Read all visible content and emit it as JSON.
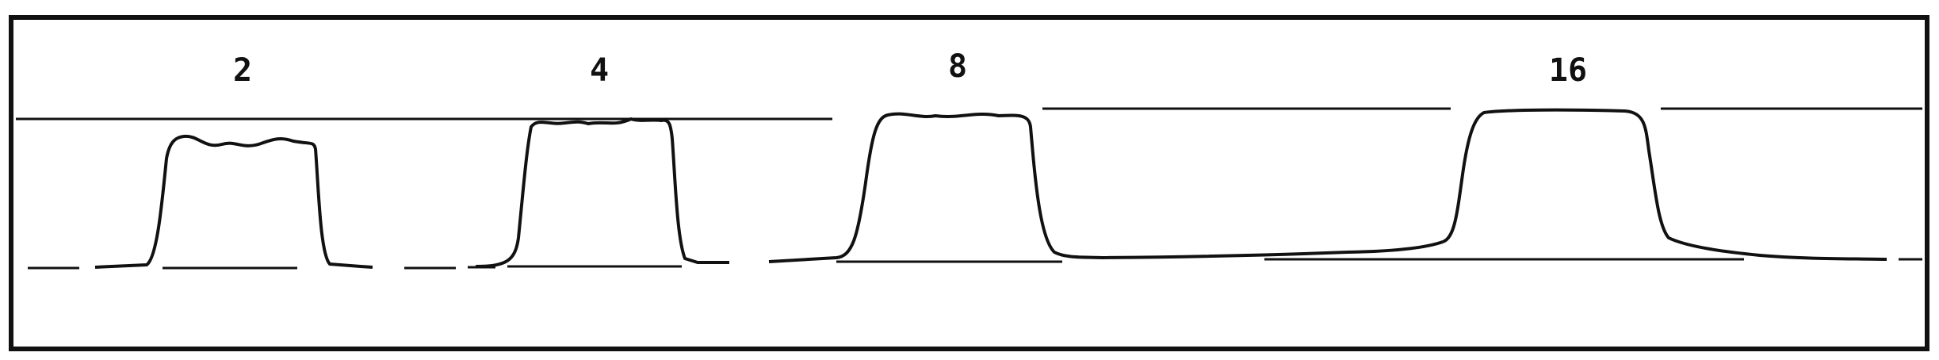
{
  "chart_data": {
    "type": "line",
    "title": "",
    "xlabel": "",
    "ylabel": "",
    "grid": false,
    "legend": "none",
    "line_color": "#111111",
    "background": "#ffffff",
    "peaks": [
      {
        "label": "2",
        "ripple": "strong",
        "relative_height": 0.8
      },
      {
        "label": "4",
        "ripple": "moderate",
        "relative_height": 0.9
      },
      {
        "label": "8",
        "ripple": "slight",
        "relative_height": 0.96
      },
      {
        "label": "16",
        "ripple": "none",
        "relative_height": 1.0
      }
    ]
  }
}
